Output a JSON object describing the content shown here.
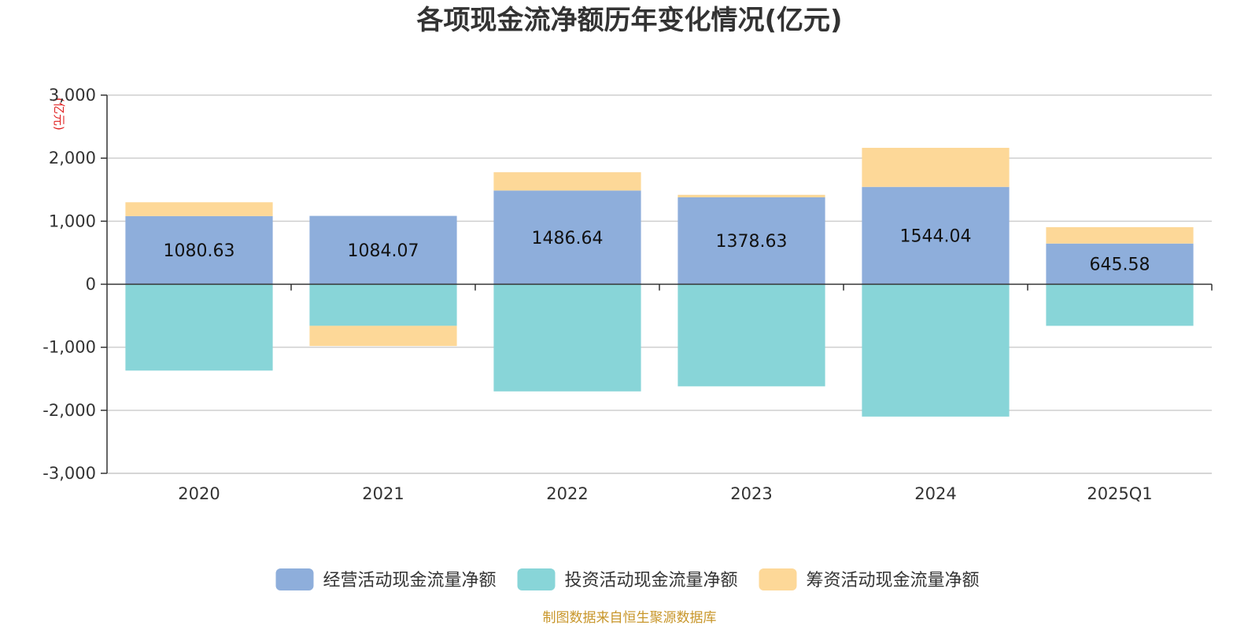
{
  "chart_data": {
    "type": "bar",
    "stacked": true,
    "title": "各项现金流净额历年变化情况(亿元)",
    "unit": "(亿元)",
    "categories": [
      "2020",
      "2021",
      "2022",
      "2023",
      "2024",
      "2025Q1"
    ],
    "series": [
      {
        "name": "经营活动现金流量净额",
        "color": "#8eaedb",
        "values": [
          1080.63,
          1084.07,
          1486.64,
          1378.63,
          1544.04,
          645.58
        ]
      },
      {
        "name": "投资活动现金流量净额",
        "color": "#88d5d8",
        "values": [
          -1370,
          -660,
          -1700,
          -1620,
          -2100,
          -660
        ]
      },
      {
        "name": "筹资活动现金流量净额",
        "color": "#fdd898",
        "values": [
          220,
          -320,
          290,
          40,
          620,
          260
        ]
      }
    ],
    "data_labels": [
      "1080.63",
      "1084.07",
      "1486.64",
      "1378.63",
      "1544.04",
      "645.58"
    ],
    "ylim": [
      -3000,
      3000
    ],
    "yticks": [
      -3000,
      -2000,
      -1000,
      0,
      1000,
      2000,
      3000
    ],
    "ytick_labels": [
      "-3,000",
      "-2,000",
      "-1,000",
      "0",
      "1,000",
      "2,000",
      "3,000"
    ],
    "grid": true,
    "legend_position": "bottom-center"
  },
  "footer": {
    "source": "制图数据来自恒生聚源数据库"
  }
}
